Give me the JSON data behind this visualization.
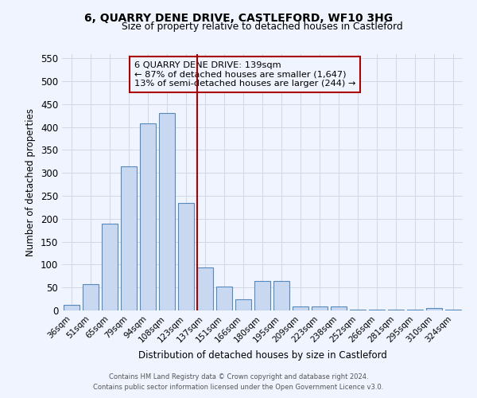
{
  "title": "6, QUARRY DENE DRIVE, CASTLEFORD, WF10 3HG",
  "subtitle": "Size of property relative to detached houses in Castleford",
  "xlabel": "Distribution of detached houses by size in Castleford",
  "ylabel": "Number of detached properties",
  "bar_labels": [
    "36sqm",
    "51sqm",
    "65sqm",
    "79sqm",
    "94sqm",
    "108sqm",
    "123sqm",
    "137sqm",
    "151sqm",
    "166sqm",
    "180sqm",
    "195sqm",
    "209sqm",
    "223sqm",
    "238sqm",
    "252sqm",
    "266sqm",
    "281sqm",
    "295sqm",
    "310sqm",
    "324sqm"
  ],
  "bar_heights": [
    12,
    58,
    190,
    315,
    408,
    430,
    234,
    93,
    52,
    24,
    65,
    65,
    8,
    8,
    8,
    2,
    2,
    2,
    2,
    5,
    2
  ],
  "bar_color": "#c8d8f0",
  "bar_edge_color": "#5588bb",
  "vline_x_index": 7,
  "vline_color": "#aa0000",
  "annotation_title": "6 QUARRY DENE DRIVE: 139sqm",
  "annotation_line1": "← 87% of detached houses are smaller (1,647)",
  "annotation_line2": "13% of semi-detached houses are larger (244) →",
  "annotation_box_color": "#aa0000",
  "ylim": [
    0,
    560
  ],
  "yticks": [
    0,
    50,
    100,
    150,
    200,
    250,
    300,
    350,
    400,
    450,
    500,
    550
  ],
  "footer1": "Contains HM Land Registry data © Crown copyright and database right 2024.",
  "footer2": "Contains public sector information licensed under the Open Government Licence v3.0.",
  "bg_color": "#f0f4ff",
  "grid_color": "#d0d8e8"
}
